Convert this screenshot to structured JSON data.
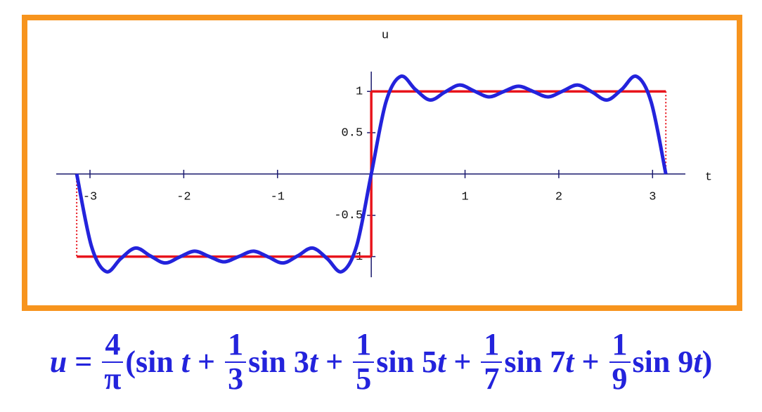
{
  "chart_data": {
    "type": "line",
    "xlabel": "t",
    "ylabel": "u",
    "xlim": [
      -3.36,
      3.35
    ],
    "ylim": [
      -1.25,
      1.24
    ],
    "xticks": [
      -3,
      -2,
      -1,
      1,
      2,
      3
    ],
    "yticks": [
      -1,
      -0.5,
      0.5,
      1
    ],
    "series": [
      {
        "color": "#2323dc",
        "x": [
          -3.1416,
          -2.9845,
          -2.8274,
          -2.6704,
          -2.5133,
          -2.3562,
          -2.1991,
          -2.042,
          -1.885,
          -1.7279,
          -1.5708,
          -1.4137,
          -1.2566,
          -1.0996,
          -0.9425,
          -0.7854,
          -0.6283,
          -0.4712,
          -0.3142,
          -0.1571,
          0,
          0.1571,
          0.3142,
          0.4712,
          0.6283,
          0.7854,
          0.9425,
          1.0996,
          1.2566,
          1.4137,
          1.5708,
          1.7279,
          1.885,
          2.042,
          2.1991,
          2.3562,
          2.5133,
          2.6704,
          2.8274,
          2.9845,
          3.1416
        ],
        "values": [
          0,
          -0.874,
          -1.182,
          -1.023,
          -0.896,
          -0.992,
          -1.077,
          -1.004,
          -0.934,
          -0.999,
          -1.063,
          -0.999,
          -0.934,
          -1.004,
          -1.077,
          -0.992,
          -0.896,
          -1.023,
          -1.182,
          -0.874,
          0,
          0.874,
          1.182,
          1.023,
          0.896,
          0.992,
          1.077,
          1.004,
          0.934,
          0.999,
          1.063,
          0.999,
          0.934,
          1.004,
          1.077,
          0.992,
          0.896,
          1.023,
          1.182,
          0.874,
          0
        ]
      },
      {
        "color": "#e8141c",
        "x": [
          -3.1416,
          -3.1416,
          0,
          0,
          3.1416,
          3.1416
        ],
        "values": [
          0,
          -1,
          -1,
          1,
          1,
          0
        ]
      }
    ]
  },
  "formula": [
    {
      "text": "u",
      "italic": true
    },
    {
      "text": " = "
    },
    {
      "num": "4",
      "den": "π"
    },
    {
      "text": "(sin "
    },
    {
      "text": "t",
      "italic": true
    },
    {
      "text": " + "
    },
    {
      "num": "1",
      "den": "3"
    },
    {
      "text": "sin 3"
    },
    {
      "text": "t",
      "italic": true
    },
    {
      "text": " + "
    },
    {
      "num": "1",
      "den": "5"
    },
    {
      "text": "sin 5"
    },
    {
      "text": "t",
      "italic": true
    },
    {
      "text": " + "
    },
    {
      "num": "1",
      "den": "7"
    },
    {
      "text": "sin 7"
    },
    {
      "text": "t",
      "italic": true
    },
    {
      "text": " + "
    },
    {
      "num": "1",
      "den": "9"
    },
    {
      "text": "sin 9"
    },
    {
      "text": "t",
      "italic": true
    },
    {
      "text": ")"
    }
  ]
}
